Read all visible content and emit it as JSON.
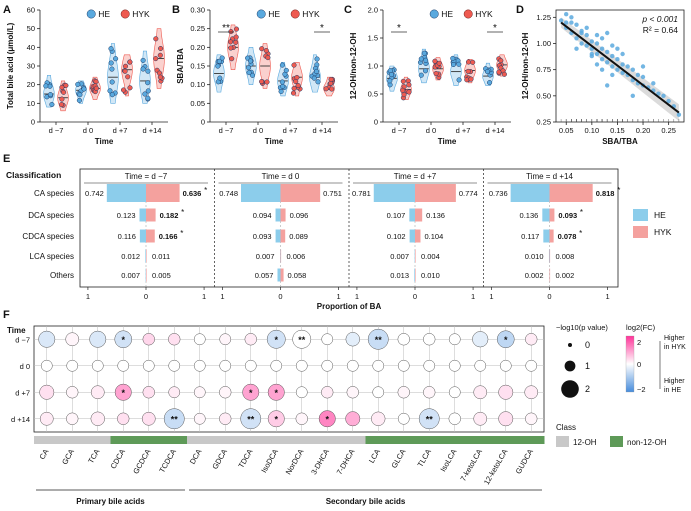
{
  "colors": {
    "he": "#5AA9DE",
    "hyk": "#EE5A50",
    "he_bar": "#8CCDEB",
    "hyk_bar": "#F4A19E",
    "grey_class": "#C8C8C8",
    "green_class": "#5E9A58"
  },
  "legend": {
    "he": "HE",
    "hyk": "HYK"
  },
  "chart_data": [
    {
      "panel": "A",
      "type": "scatter",
      "subtype": "violin-dot",
      "ylabel": "Total bile acid (μmol/L)",
      "xlabel": "Time",
      "categories": [
        "d −7",
        "d 0",
        "d +7",
        "d +14"
      ],
      "ylim": [
        0,
        60
      ],
      "yticks": [
        "0",
        "10",
        "20",
        "30",
        "40",
        "50",
        "60"
      ],
      "series": [
        {
          "name": "HE",
          "median": [
            15,
            17,
            24,
            22
          ],
          "range": [
            [
              8,
              25
            ],
            [
              10,
              22
            ],
            [
              10,
              42
            ],
            [
              10,
              38
            ]
          ]
        },
        {
          "name": "HYK",
          "median": [
            13,
            18,
            28,
            34
          ],
          "range": [
            [
              6,
              22
            ],
            [
              12,
              24
            ],
            [
              14,
              36
            ],
            [
              18,
              50
            ]
          ]
        }
      ]
    },
    {
      "panel": "B",
      "type": "scatter",
      "subtype": "violin-dot",
      "ylabel": "SBA/TBA",
      "xlabel": "Time",
      "categories": [
        "d −7",
        "d 0",
        "d +7",
        "d +14"
      ],
      "ylim": [
        0,
        0.3
      ],
      "yticks": [
        "0",
        "0.05",
        "0.10",
        "0.15",
        "0.20",
        "0.25",
        "0.30"
      ],
      "significance": [
        {
          "category": "d −7",
          "label": "**"
        },
        {
          "category": "d +14",
          "label": "*"
        }
      ],
      "series": [
        {
          "name": "HE",
          "median": [
            0.13,
            0.15,
            0.11,
            0.12
          ],
          "range": [
            [
              0.08,
              0.18
            ],
            [
              0.1,
              0.2
            ],
            [
              0.07,
              0.16
            ],
            [
              0.08,
              0.18
            ]
          ]
        },
        {
          "name": "HYK",
          "median": [
            0.2,
            0.15,
            0.12,
            0.09
          ],
          "range": [
            [
              0.14,
              0.26
            ],
            [
              0.09,
              0.21
            ],
            [
              0.07,
              0.16
            ],
            [
              0.07,
              0.12
            ]
          ]
        }
      ]
    },
    {
      "panel": "C",
      "type": "scatter",
      "subtype": "violin-dot",
      "ylabel": "12-OH/non-12-OH",
      "xlabel": "Time",
      "categories": [
        "d −7",
        "d 0",
        "d +7",
        "d +14"
      ],
      "ylim": [
        0,
        2.0
      ],
      "yticks": [
        "0",
        "0.5",
        "1.0",
        "1.5",
        "2.0"
      ],
      "significance": [
        {
          "category": "d −7",
          "label": "*"
        },
        {
          "category": "d +14",
          "label": "*"
        }
      ],
      "series": [
        {
          "name": "HE",
          "median": [
            0.78,
            0.95,
            0.9,
            0.82
          ],
          "range": [
            [
              0.55,
              1.0
            ],
            [
              0.7,
              1.3
            ],
            [
              0.65,
              1.2
            ],
            [
              0.65,
              1.05
            ]
          ]
        },
        {
          "name": "HYK",
          "median": [
            0.58,
            0.95,
            0.92,
            1.02
          ],
          "range": [
            [
              0.4,
              0.8
            ],
            [
              0.75,
              1.15
            ],
            [
              0.7,
              1.12
            ],
            [
              0.82,
              1.2
            ]
          ]
        }
      ]
    },
    {
      "panel": "D",
      "type": "scatter",
      "subtype": "regression",
      "xlabel": "SBA/TBA",
      "ylabel": "12-OH/non-12-OH",
      "xlim": [
        0.03,
        0.28
      ],
      "ylim": [
        0.25,
        1.32
      ],
      "xticks": [
        "0.05",
        "0.10",
        "0.15",
        "0.20",
        "0.25"
      ],
      "yticks": [
        "0.25",
        "0.50",
        "0.75",
        "1.00",
        "1.25"
      ],
      "annotation_p": "p < 0.001",
      "annotation_r2": "R² = 0.64",
      "fit": {
        "x": [
          0.04,
          0.27
        ],
        "y": [
          1.2,
          0.34
        ]
      },
      "points": {
        "x": [
          0.04,
          0.05,
          0.05,
          0.06,
          0.06,
          0.07,
          0.07,
          0.08,
          0.08,
          0.09,
          0.09,
          0.1,
          0.1,
          0.1,
          0.11,
          0.11,
          0.12,
          0.12,
          0.12,
          0.13,
          0.13,
          0.14,
          0.14,
          0.14,
          0.15,
          0.15,
          0.16,
          0.16,
          0.17,
          0.17,
          0.18,
          0.18,
          0.19,
          0.19,
          0.2,
          0.2,
          0.21,
          0.22,
          0.22,
          0.23,
          0.24,
          0.25,
          0.26,
          0.27,
          0.06,
          0.08,
          0.1,
          0.12,
          0.14,
          0.16,
          0.09,
          0.11,
          0.13,
          0.07,
          0.05,
          0.15,
          0.18,
          0.2,
          0.11,
          0.13
        ],
        "y": [
          1.22,
          1.15,
          1.28,
          1.1,
          1.2,
          1.05,
          1.18,
          1.0,
          1.12,
          0.98,
          1.08,
          0.95,
          1.02,
          0.88,
          0.9,
          1.0,
          0.85,
          0.95,
          1.05,
          0.82,
          0.92,
          0.78,
          0.88,
          0.98,
          0.75,
          0.85,
          0.72,
          0.8,
          0.7,
          0.78,
          0.65,
          0.75,
          0.62,
          0.7,
          0.6,
          0.68,
          0.58,
          0.55,
          0.62,
          0.52,
          0.5,
          0.45,
          0.4,
          0.32,
          1.25,
          1.1,
          0.9,
          0.75,
          0.7,
          0.9,
          1.15,
          0.8,
          0.6,
          0.95,
          1.2,
          0.95,
          0.5,
          0.78,
          1.08,
          1.1
        ]
      }
    },
    {
      "panel": "E",
      "type": "bar",
      "subtype": "diverging-horizontal",
      "classification_label": "Classification",
      "categories": [
        "CA species",
        "DCA species",
        "CDCA species",
        "LCA species",
        "Others"
      ],
      "xlabel": "Proportion of BA",
      "xtick_labels": [
        "1",
        "0",
        "1"
      ],
      "facets": [
        {
          "title": "Time = d −7",
          "he": [
            "0.742",
            "0.123",
            "0.116",
            "0.012",
            "0.007"
          ],
          "hyk": [
            "0.636",
            "0.182",
            "0.166",
            "0.011",
            "0.005"
          ],
          "sig": [
            "*",
            "*",
            "*",
            "",
            ""
          ]
        },
        {
          "title": "Time = d 0",
          "he": [
            "0.748",
            "0.094",
            "0.093",
            "0.007",
            "0.057"
          ],
          "hyk": [
            "0.751",
            "0.096",
            "0.089",
            "0.006",
            "0.058"
          ],
          "sig": [
            "",
            "",
            "",
            "",
            ""
          ]
        },
        {
          "title": "Time = d +7",
          "he": [
            "0.781",
            "0.107",
            "0.102",
            "0.007",
            "0.013"
          ],
          "hyk": [
            "0.774",
            "0.136",
            "0.104",
            "0.004",
            "0.010"
          ],
          "sig": [
            "",
            "",
            "",
            "",
            ""
          ]
        },
        {
          "title": "Time = d +14",
          "he": [
            "0.736",
            "0.136",
            "0.117",
            "0.010",
            "0.002"
          ],
          "hyk": [
            "0.818",
            "0.093",
            "0.078",
            "0.008",
            "0.002"
          ],
          "sig": [
            "*",
            "*",
            "*",
            "",
            ""
          ]
        }
      ]
    },
    {
      "panel": "F",
      "type": "heatmap",
      "subtype": "bubble",
      "ylabel": "Time",
      "rows": [
        "d −7",
        "d 0",
        "d +7",
        "d +14"
      ],
      "columns": [
        "CA",
        "GCA",
        "TCA",
        "CDCA",
        "GCDCA",
        "TCDCA",
        "DCA",
        "GDCA",
        "TDCA",
        "IsoDCA",
        "NorDCA",
        "3-DHCA",
        "7-DHCA",
        "LCA",
        "GLCA",
        "TLCA",
        "IsoLCA",
        "7-ketoLCA",
        "12-ketoLCA",
        "GUDCA"
      ],
      "class": [
        "12-OH",
        "12-OH",
        "12-OH",
        "non-12-OH",
        "non-12-OH",
        "non-12-OH",
        "12-OH",
        "12-OH",
        "12-OH",
        "12-OH",
        "12-OH",
        "12-OH",
        "12-OH",
        "non-12-OH",
        "non-12-OH",
        "non-12-OH",
        "non-12-OH",
        "non-12-OH",
        "non-12-OH",
        "non-12-OH"
      ],
      "log2fc": [
        [
          -0.4,
          0.1,
          -0.4,
          -0.5,
          0.4,
          0.3,
          0.0,
          0.1,
          0.2,
          -0.5,
          0.0,
          0.0,
          -0.3,
          -0.6,
          0.0,
          0.0,
          0.0,
          -0.3,
          -0.7,
          0.2
        ],
        [
          0.0,
          0.0,
          0.0,
          0.0,
          0.0,
          0.0,
          0.0,
          0.0,
          0.0,
          0.0,
          0.0,
          0.0,
          0.0,
          0.0,
          0.0,
          0.0,
          0.0,
          0.0,
          0.0,
          0.0
        ],
        [
          0.3,
          0.1,
          0.2,
          0.9,
          0.3,
          0.2,
          0.1,
          0.1,
          0.9,
          0.9,
          0.0,
          0.2,
          0.1,
          0.0,
          0.1,
          0.1,
          0.0,
          0.2,
          0.3,
          0.2
        ],
        [
          0.2,
          0.1,
          0.2,
          0.3,
          0.3,
          -0.6,
          0.1,
          0.2,
          -0.5,
          0.5,
          0.1,
          1.2,
          0.8,
          0.2,
          0.0,
          -0.5,
          0.0,
          0.2,
          0.3,
          0.1
        ]
      ],
      "neglog10p": [
        [
          1.3,
          0.8,
          1.3,
          1.4,
          0.6,
          0.6,
          0.5,
          0.5,
          0.6,
          1.6,
          1.6,
          0.5,
          0.9,
          1.9,
          0.6,
          0.6,
          0.5,
          1.2,
          1.4,
          0.6
        ],
        [
          0.5,
          0.5,
          0.5,
          0.5,
          0.5,
          0.5,
          0.5,
          0.5,
          0.5,
          0.5,
          0.5,
          0.5,
          0.5,
          0.5,
          0.5,
          0.5,
          0.5,
          0.5,
          0.5,
          0.5
        ],
        [
          1.0,
          0.6,
          0.8,
          1.3,
          0.6,
          0.5,
          0.5,
          0.6,
          1.3,
          1.3,
          0.5,
          0.6,
          0.6,
          0.5,
          0.6,
          0.6,
          0.5,
          0.8,
          1.0,
          0.8
        ],
        [
          0.8,
          0.6,
          0.9,
          0.6,
          0.8,
          1.9,
          0.5,
          0.6,
          1.9,
          1.3,
          0.6,
          1.3,
          1.0,
          0.9,
          0.5,
          1.9,
          0.6,
          0.8,
          1.0,
          0.6
        ]
      ],
      "stars": [
        [
          "",
          "",
          "",
          "*",
          "",
          "",
          "",
          "",
          "",
          "*",
          "**",
          "",
          "",
          "**",
          "",
          "",
          "",
          "",
          "*",
          ""
        ],
        [
          "",
          "",
          "",
          "",
          "",
          "",
          "",
          "",
          "",
          "",
          "",
          "",
          "",
          "",
          "",
          "",
          "",
          "",
          "",
          ""
        ],
        [
          "",
          "",
          "",
          "*",
          "",
          "",
          "",
          "",
          "*",
          "*",
          "",
          "",
          "",
          "",
          "",
          "",
          "",
          "",
          "",
          ""
        ],
        [
          "",
          "",
          "",
          "",
          "",
          "**",
          "",
          "",
          "**",
          "*",
          "",
          "*",
          "",
          "",
          "",
          "**",
          "",
          "",
          "",
          ""
        ]
      ],
      "legend_size_title": "−log10(p value)",
      "legend_size_values": [
        "0",
        "1",
        "2"
      ],
      "legend_color_title": "log2(FC)",
      "legend_color_ticks": [
        "2",
        "0",
        "−2"
      ],
      "legend_higher_hyk": "Higher in HYK",
      "legend_higher_he": "Higher in HE",
      "legend_class_title": "Class",
      "legend_class_12oh": "12-OH",
      "legend_class_non12oh": "non-12-OH",
      "group_primary": "Primary bile acids",
      "group_secondary": "Secondary bile acids"
    }
  ]
}
